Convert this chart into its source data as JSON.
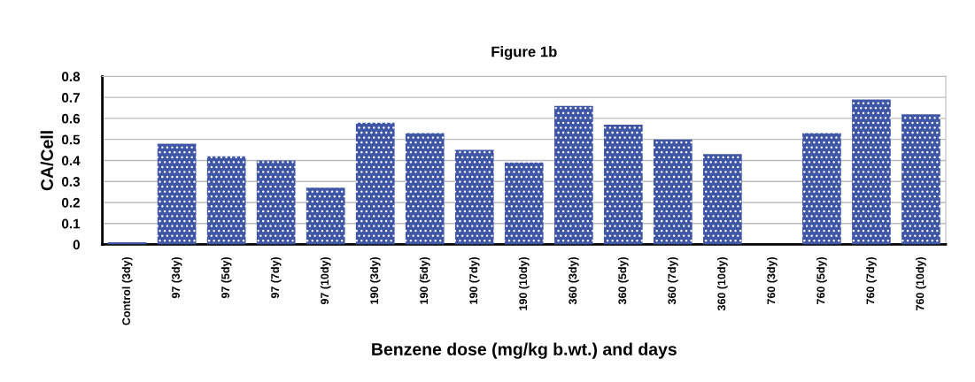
{
  "chart_data": {
    "type": "bar",
    "title": "Figure 1b",
    "xlabel": "Benzene dose (mg/kg b.wt.) and days",
    "ylabel": "CA/Cell",
    "categories": [
      "Control (3dy)",
      "97 (3dy)",
      "97 (5dy)",
      "97 (7dy)",
      "97 (10dy)",
      "190 (3dy)",
      "190 (5dy)",
      "190 (7dy)",
      "190 (10dy)",
      "360 (3dy)",
      "360 (5dy)",
      "360 (7dy)",
      "360 (10dy)",
      "760 (3dy)",
      "760 (5dy)",
      "760 (7dy)",
      "760 (10dy)"
    ],
    "values": [
      0.01,
      0.48,
      0.42,
      0.4,
      0.27,
      0.58,
      0.53,
      0.45,
      0.39,
      0.66,
      0.57,
      0.5,
      0.43,
      0,
      0.53,
      0.69,
      0.62
    ],
    "color": "#3f56a6",
    "ylim": [
      0,
      0.8
    ],
    "yticks": [
      0,
      0.1,
      0.2,
      0.3,
      0.4,
      0.5,
      0.6,
      0.7,
      0.8
    ],
    "grid": "y"
  }
}
